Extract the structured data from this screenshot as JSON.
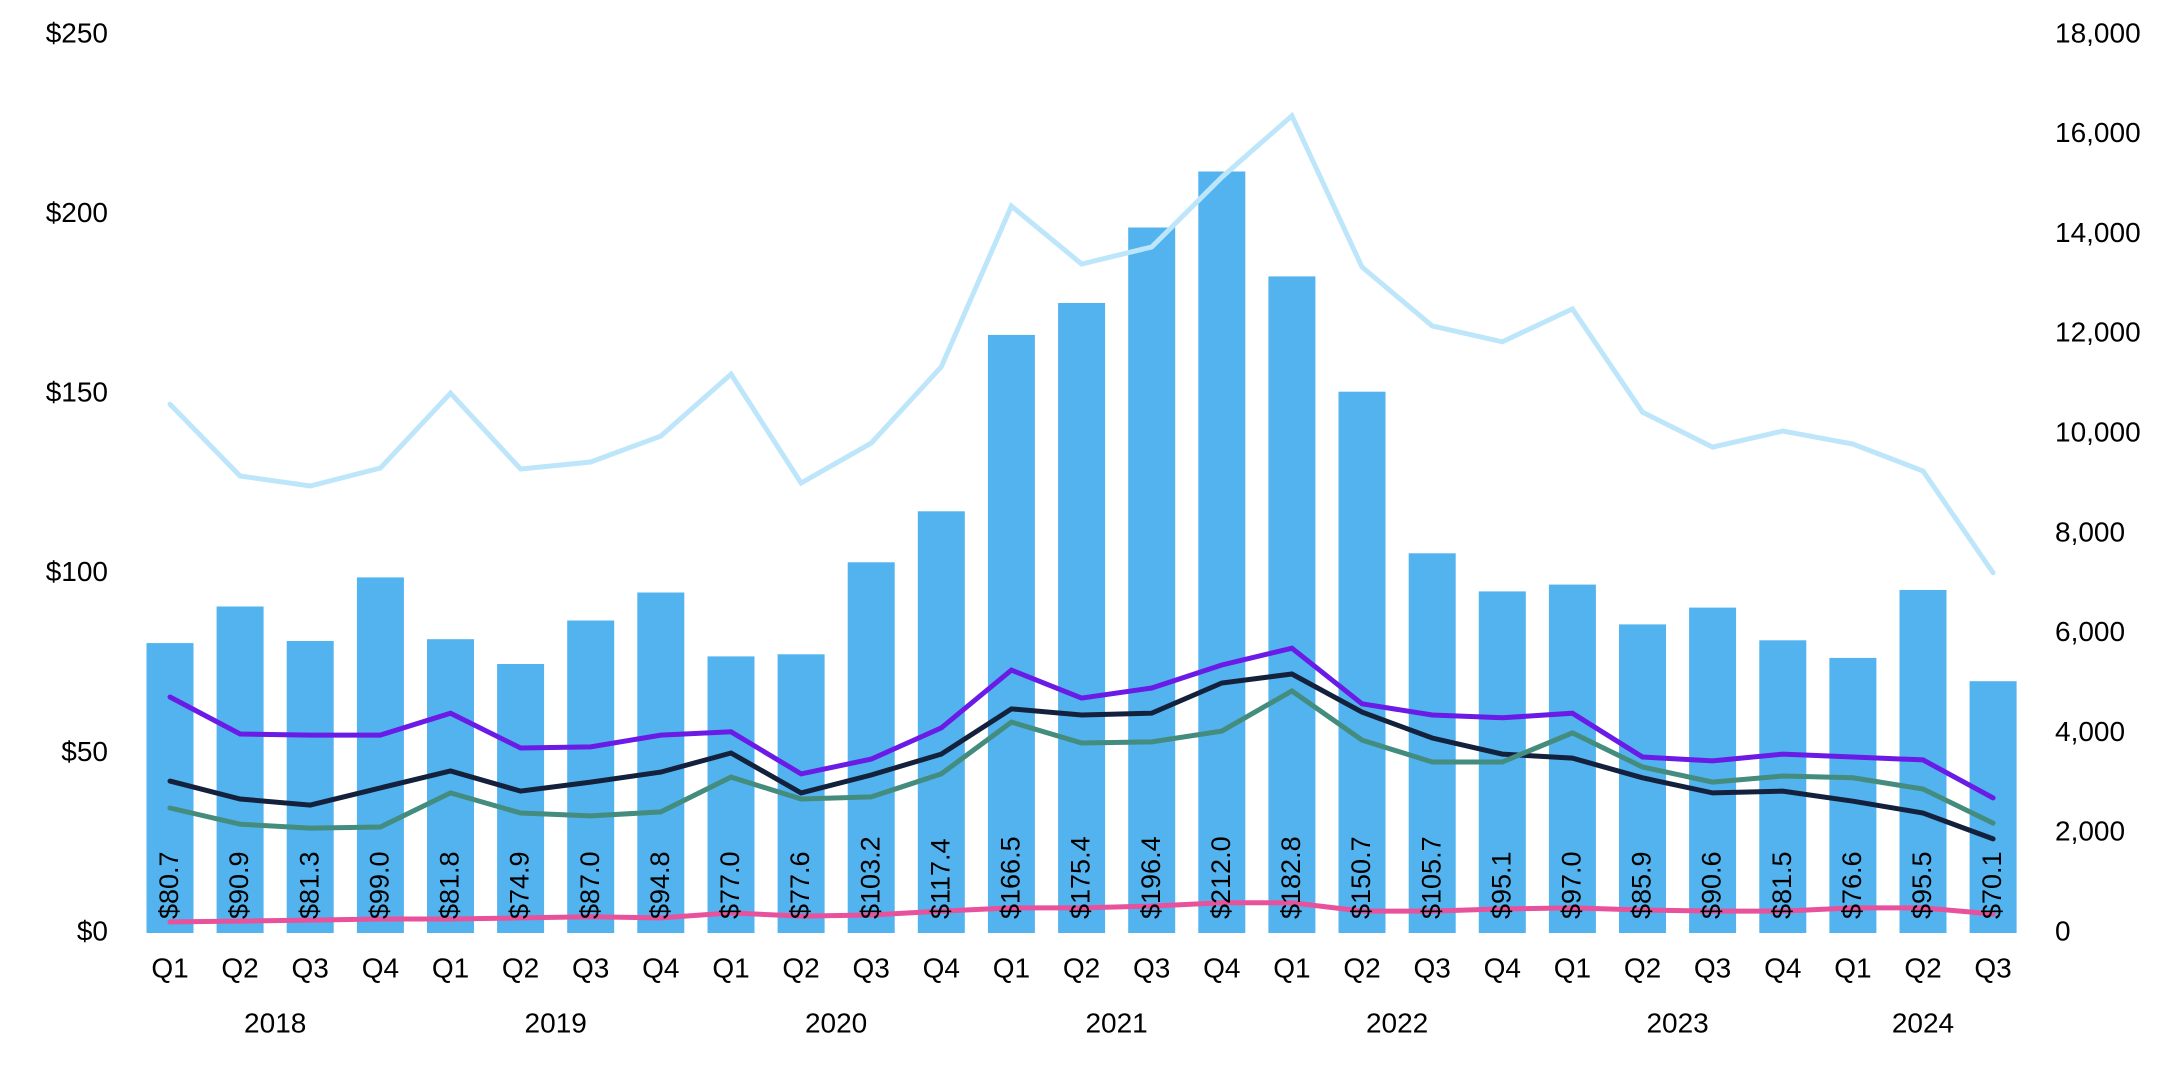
{
  "chart_data": {
    "type": "bar+line",
    "title": "",
    "xlabel": "",
    "ylabel": "",
    "ylabel_right": "",
    "left_axis": {
      "ylim": [
        0,
        250
      ],
      "ticks": [
        0,
        50,
        100,
        150,
        200,
        250
      ],
      "tick_labels": [
        "$0",
        "$50",
        "$100",
        "$150",
        "$200",
        "$250"
      ]
    },
    "right_axis": {
      "ylim": [
        0,
        18000
      ],
      "ticks": [
        0,
        2000,
        4000,
        6000,
        8000,
        10000,
        12000,
        14000,
        16000,
        18000
      ],
      "tick_labels": [
        "0",
        "2,000",
        "4,000",
        "6,000",
        "8,000",
        "10,000",
        "12,000",
        "14,000",
        "16,000",
        "18,000"
      ]
    },
    "grid": false,
    "legend": null,
    "categories": [
      "2018 Q1",
      "2018 Q2",
      "2018 Q3",
      "2018 Q4",
      "2019 Q1",
      "2019 Q2",
      "2019 Q3",
      "2019 Q4",
      "2020 Q1",
      "2020 Q2",
      "2020 Q3",
      "2020 Q4",
      "2021 Q1",
      "2021 Q2",
      "2021 Q3",
      "2021 Q4",
      "2022 Q1",
      "2022 Q2",
      "2022 Q3",
      "2022 Q4",
      "2023 Q1",
      "2023 Q2",
      "2023 Q3",
      "2023 Q4",
      "2024 Q1",
      "2024 Q2",
      "2024 Q3"
    ],
    "quarter_labels": [
      "Q1",
      "Q2",
      "Q3",
      "Q4",
      "Q1",
      "Q2",
      "Q3",
      "Q4",
      "Q1",
      "Q2",
      "Q3",
      "Q4",
      "Q1",
      "Q2",
      "Q3",
      "Q4",
      "Q1",
      "Q2",
      "Q3",
      "Q4",
      "Q1",
      "Q2",
      "Q3",
      "Q4",
      "Q1",
      "Q2",
      "Q3"
    ],
    "year_groups": [
      {
        "label": "2018",
        "start": 0,
        "end": 3
      },
      {
        "label": "2019",
        "start": 4,
        "end": 7
      },
      {
        "label": "2020",
        "start": 8,
        "end": 11
      },
      {
        "label": "2021",
        "start": 12,
        "end": 15
      },
      {
        "label": "2022",
        "start": 16,
        "end": 19
      },
      {
        "label": "2023",
        "start": 20,
        "end": 23
      },
      {
        "label": "2024",
        "start": 24,
        "end": 26
      }
    ],
    "series": [
      {
        "name": "Bars (left axis, $)",
        "type": "bar",
        "axis": "left",
        "color": "#52B3EE",
        "values": [
          80.7,
          90.9,
          81.3,
          99.0,
          81.8,
          74.9,
          87.0,
          94.8,
          77.0,
          77.6,
          103.2,
          117.4,
          166.5,
          175.4,
          196.4,
          212.0,
          182.8,
          150.7,
          105.7,
          95.1,
          97.0,
          85.9,
          90.6,
          81.5,
          76.6,
          95.5,
          70.1
        ],
        "data_labels": [
          "$80.7",
          "$90.9",
          "$81.3",
          "$99.0",
          "$81.8",
          "$74.9",
          "$87.0",
          "$94.8",
          "$77.0",
          "$77.6",
          "$103.2",
          "$117.4",
          "$166.5",
          "$175.4",
          "$196.4",
          "$212.0",
          "$182.8",
          "$150.7",
          "$105.7",
          "$95.1",
          "$97.0",
          "$85.9",
          "$90.6",
          "$81.5",
          "$76.6",
          "$95.5",
          "$70.1"
        ]
      },
      {
        "name": "Light blue line (right axis)",
        "type": "line",
        "axis": "right",
        "color": "#BDE6FA",
        "values": [
          10600,
          9160,
          8960,
          9320,
          10820,
          9300,
          9440,
          9960,
          11200,
          9020,
          9820,
          11350,
          14570,
          13410,
          13750,
          15150,
          16380,
          13350,
          12170,
          11850,
          12510,
          10440,
          9740,
          10060,
          9800,
          9260,
          7220
        ]
      },
      {
        "name": "Purple line (left axis, $)",
        "type": "line",
        "axis": "left",
        "color": "#6A1BE5",
        "values": [
          65.7,
          55.4,
          55.1,
          55.1,
          61.2,
          51.5,
          51.8,
          55.1,
          56.0,
          44.3,
          48.4,
          57.1,
          73.2,
          65.4,
          68.2,
          74.6,
          79.3,
          63.8,
          60.7,
          59.9,
          61.2,
          49.0,
          47.9,
          49.8,
          49.0,
          48.2,
          37.6
        ]
      },
      {
        "name": "Navy line (left axis, $)",
        "type": "line",
        "axis": "left",
        "color": "#14213D",
        "values": [
          42.3,
          37.3,
          35.6,
          40.4,
          45.1,
          39.5,
          42.0,
          44.8,
          50.1,
          39.0,
          44.0,
          49.8,
          62.4,
          60.7,
          61.2,
          69.6,
          72.1,
          61.5,
          54.3,
          49.8,
          48.7,
          43.2,
          39.0,
          39.5,
          36.7,
          33.4,
          26.2
        ]
      },
      {
        "name": "Teal line (left axis, $)",
        "type": "line",
        "axis": "left",
        "color": "#438C7E",
        "values": [
          34.8,
          30.3,
          29.2,
          29.5,
          39.0,
          33.4,
          32.6,
          33.7,
          43.4,
          37.3,
          37.9,
          44.3,
          58.7,
          52.9,
          53.2,
          56.2,
          67.4,
          53.7,
          47.6,
          47.6,
          55.7,
          46.2,
          42.0,
          43.7,
          43.2,
          40.1,
          30.6
        ]
      },
      {
        "name": "Pink line (left axis, $)",
        "type": "line",
        "axis": "left",
        "color": "#E8519B",
        "values": [
          3.1,
          3.3,
          3.6,
          3.9,
          3.9,
          4.2,
          4.5,
          4.2,
          5.6,
          4.7,
          5.0,
          6.1,
          7.0,
          7.0,
          7.5,
          8.4,
          8.4,
          6.1,
          6.1,
          6.7,
          7.0,
          6.4,
          6.1,
          6.1,
          7.0,
          7.0,
          5.3
        ]
      }
    ]
  }
}
